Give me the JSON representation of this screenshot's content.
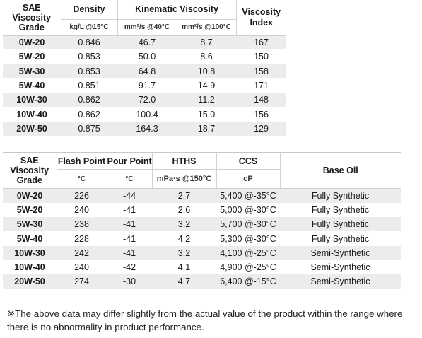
{
  "table1": {
    "headers": {
      "grade": "SAE Viscosity Grade",
      "density": "Density",
      "density_unit": "kg/L @15°C",
      "kinematic": "Kinematic Viscosity",
      "kv40_unit": "mm²/s @40°C",
      "kv100_unit": "mm²/s @100°C",
      "vi": "Viscosity Index"
    },
    "rows": [
      {
        "grade": "0W-20",
        "density": "0.846",
        "kv40": "46.7",
        "kv100": "8.7",
        "vi": "167"
      },
      {
        "grade": "5W-20",
        "density": "0.853",
        "kv40": "50.0",
        "kv100": "8.6",
        "vi": "150"
      },
      {
        "grade": "5W-30",
        "density": "0.853",
        "kv40": "64.8",
        "kv100": "10.8",
        "vi": "158"
      },
      {
        "grade": "5W-40",
        "density": "0.851",
        "kv40": "91.7",
        "kv100": "14.9",
        "vi": "171"
      },
      {
        "grade": "10W-30",
        "density": "0.862",
        "kv40": "72.0",
        "kv100": "11.2",
        "vi": "148"
      },
      {
        "grade": "10W-40",
        "density": "0.862",
        "kv40": "100.4",
        "kv100": "15.0",
        "vi": "156"
      },
      {
        "grade": "20W-50",
        "density": "0.875",
        "kv40": "164.3",
        "kv100": "18.7",
        "vi": "129"
      }
    ]
  },
  "table2": {
    "headers": {
      "grade": "SAE Viscosity Grade",
      "flash": "Flash Point",
      "flash_unit": "°C",
      "pour": "Pour Point",
      "pour_unit": "°C",
      "hths": "HTHS",
      "hths_unit": "mPa·s @150°C",
      "ccs": "CCS",
      "ccs_unit": "cP",
      "base": "Base Oil"
    },
    "rows": [
      {
        "grade": "0W-20",
        "flash": "226",
        "pour": "-44",
        "hths": "2.7",
        "ccs": "5,400 @-35°C",
        "base": "Fully Synthetic"
      },
      {
        "grade": "5W-20",
        "flash": "240",
        "pour": "-41",
        "hths": "2.6",
        "ccs": "5,000 @-30°C",
        "base": "Fully Synthetic"
      },
      {
        "grade": "5W-30",
        "flash": "238",
        "pour": "-41",
        "hths": "3.2",
        "ccs": "5,700 @-30°C",
        "base": "Fully Synthetic"
      },
      {
        "grade": "5W-40",
        "flash": "228",
        "pour": "-41",
        "hths": "4.2",
        "ccs": "5,300 @-30°C",
        "base": "Fully Synthetic"
      },
      {
        "grade": "10W-30",
        "flash": "242",
        "pour": "-41",
        "hths": "3.2",
        "ccs": "4,100 @-25°C",
        "base": "Semi-Synthetic"
      },
      {
        "grade": "10W-40",
        "flash": "240",
        "pour": "-42",
        "hths": "4.1",
        "ccs": "4,900 @-25°C",
        "base": "Semi-Synthetic"
      },
      {
        "grade": "20W-50",
        "flash": "274",
        "pour": "-30",
        "hths": "4.7",
        "ccs": "6,400 @-15°C",
        "base": "Semi-Synthetic"
      }
    ]
  },
  "footnote": "※The above data may differ slightly from the actual value of the product within the range where there is no abnormality in product performance."
}
